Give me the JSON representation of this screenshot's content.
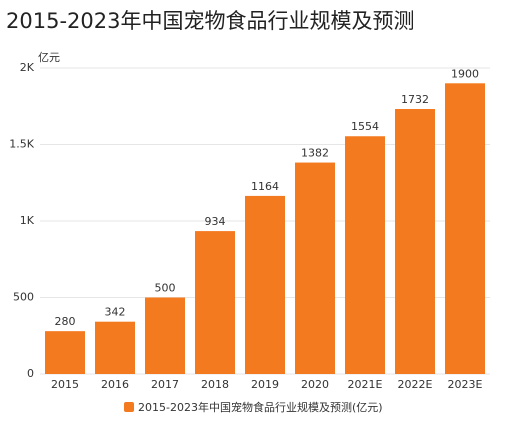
{
  "chart_data": {
    "type": "bar",
    "title": "2015-2023年中国宠物食品行业规模及预测",
    "y_label": "亿元",
    "categories": [
      "2015",
      "2016",
      "2017",
      "2018",
      "2019",
      "2020",
      "2021E",
      "2022E",
      "2023E"
    ],
    "series": [
      {
        "name": "2015-2023年中国宠物食品行业规模及预测(亿元)",
        "color": "#f47a20",
        "values": [
          280,
          342,
          500,
          934,
          1164,
          1382,
          1554,
          1732,
          1900
        ]
      }
    ],
    "ylim": [
      0,
      2000
    ],
    "yticks": [
      0,
      500,
      {
        "value": 1000,
        "label": "1K"
      },
      {
        "value": 1500,
        "label": "1.5K"
      },
      {
        "value": 2000,
        "label": "2K"
      }
    ],
    "grid": true
  }
}
